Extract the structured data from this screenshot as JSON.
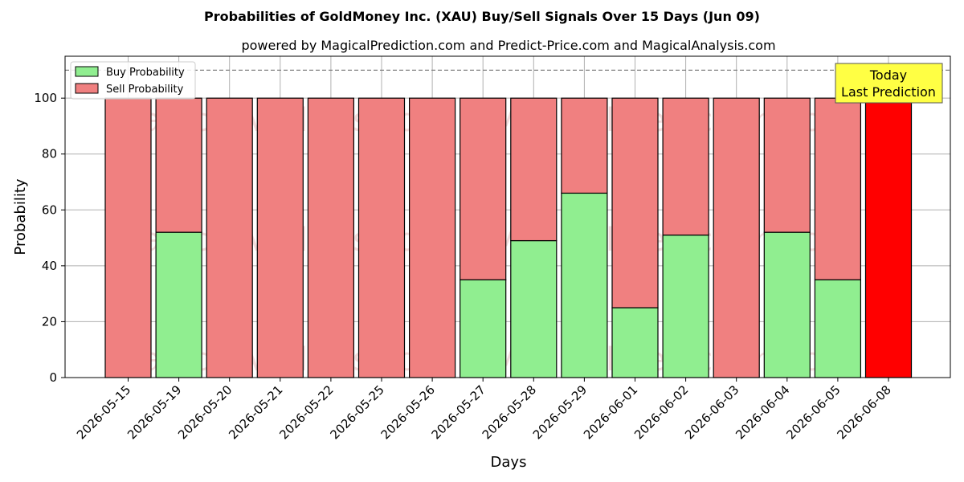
{
  "chart_data": {
    "type": "bar",
    "stacked": true,
    "title": "Probabilities of GoldMoney Inc. (XAU) Buy/Sell Signals Over 15 Days (Jun 09)",
    "subtitle": "powered by MagicalPrediction.com and Predict-Price.com and MagicalAnalysis.com",
    "xlabel": "Days",
    "ylabel": "Probability",
    "ylim": [
      0,
      115
    ],
    "yticks": [
      0,
      20,
      40,
      60,
      80,
      100
    ],
    "reference_line": 110,
    "grid": true,
    "legend_position": "top-left",
    "categories": [
      "2026-05-15",
      "2026-05-19",
      "2026-05-20",
      "2026-05-21",
      "2026-05-22",
      "2026-05-25",
      "2026-05-26",
      "2026-05-27",
      "2026-05-28",
      "2026-05-29",
      "2026-06-01",
      "2026-06-02",
      "2026-06-03",
      "2026-06-04",
      "2026-06-05",
      "2026-06-08"
    ],
    "series": [
      {
        "name": "Buy Probability",
        "color": "#90ee90",
        "values": [
          0,
          52,
          0,
          0,
          0,
          0,
          0,
          35,
          49,
          66,
          25,
          51,
          0,
          52,
          35,
          0
        ]
      },
      {
        "name": "Sell Probability",
        "color": "#f08080",
        "values": [
          100,
          48,
          100,
          100,
          100,
          100,
          100,
          65,
          51,
          34,
          75,
          49,
          100,
          48,
          65,
          100
        ]
      }
    ],
    "highlight": {
      "index": 15,
      "color": "#ff0000"
    },
    "annotation": {
      "line1": "Today",
      "line2": "Last Prediction",
      "background": "#ffff44"
    },
    "watermarks": [
      "MagicalAnalysis.com",
      "MagicalPrediction.com"
    ]
  }
}
